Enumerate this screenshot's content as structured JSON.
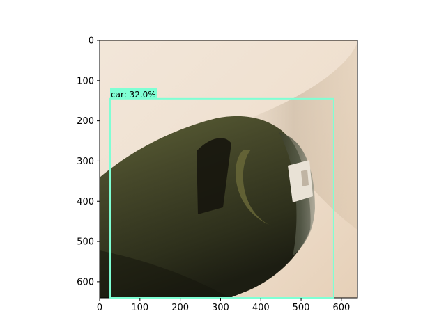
{
  "axes": {
    "x_ticks": [
      "0",
      "100",
      "200",
      "300",
      "400",
      "500",
      "600"
    ],
    "y_ticks": [
      "0",
      "100",
      "200",
      "300",
      "400",
      "500",
      "600"
    ],
    "xlim": [
      0,
      640
    ],
    "ylim": [
      640,
      0
    ]
  },
  "detection": {
    "label": "car: 32.0%",
    "box_color": "#7fffd4",
    "box": {
      "x1": 26,
      "y1": 145,
      "x2": 581,
      "y2": 640
    }
  },
  "scene": {
    "description_colors": {
      "background": "#efe2d4",
      "bottle": "#3b3d22"
    }
  }
}
